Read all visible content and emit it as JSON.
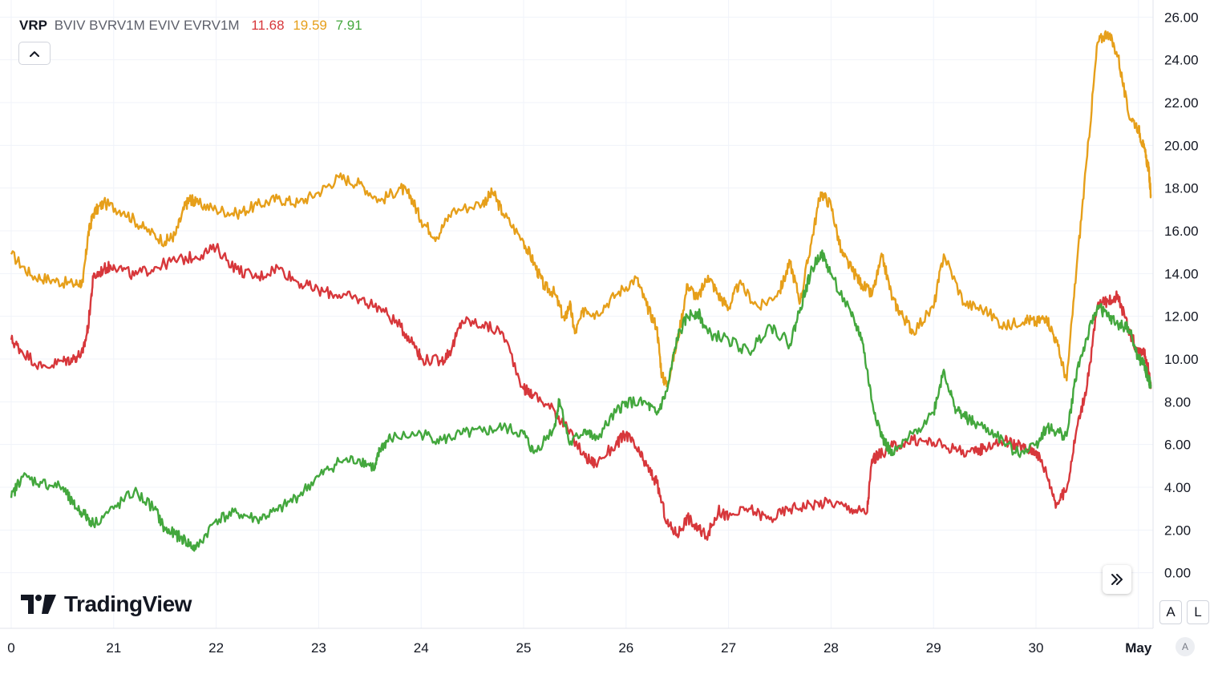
{
  "legend": {
    "symbol": "VRP",
    "studies": "BVIV BVRV1M EVIV EVRV1M",
    "values": [
      "11.68",
      "19.59",
      "7.91"
    ]
  },
  "logo": {
    "text": "TradingView"
  },
  "buttons": {
    "auto_scale": "A",
    "log_scale": "L",
    "timezone": "A"
  },
  "colors": {
    "red": "#d7373b",
    "orange": "#e69f1a",
    "green": "#43a73d",
    "grid": "#f0f3fa",
    "text": "#131722"
  },
  "icons": {
    "collapse": "chevron-up-icon",
    "scroll": "double-chevron-right-icon"
  },
  "chart_data": {
    "type": "line",
    "title": "",
    "xlabel": "",
    "ylabel": "",
    "x_tick_labels": [
      "0",
      "21",
      "22",
      "23",
      "24",
      "25",
      "26",
      "27",
      "28",
      "29",
      "30",
      "May"
    ],
    "x_tick_pos": [
      0,
      1,
      2,
      3,
      4,
      5,
      6,
      7,
      8,
      9,
      10,
      11
    ],
    "xlim": [
      0,
      11.17
    ],
    "ylim": [
      -2.6,
      26.8
    ],
    "y_ticks": [
      0,
      2,
      4,
      6,
      8,
      10,
      12,
      14,
      16,
      18,
      20,
      22,
      24,
      26
    ],
    "y_tick_labels": [
      "0.00",
      "2.00",
      "4.00",
      "6.00",
      "8.00",
      "10.00",
      "12.00",
      "14.00",
      "16.00",
      "18.00",
      "20.00",
      "22.00",
      "24.00",
      "26.00"
    ],
    "grid": true,
    "legend_position": "top-left",
    "series": [
      {
        "color": "#e69f1a",
        "x": [
          0,
          0.2,
          0.4,
          0.6,
          0.7,
          0.75,
          0.8,
          0.9,
          1.1,
          1.3,
          1.5,
          1.6,
          1.7,
          1.75,
          1.8,
          2.0,
          2.2,
          2.4,
          2.6,
          2.8,
          3.0,
          3.2,
          3.4,
          3.6,
          3.8,
          3.9,
          4.0,
          4.15,
          4.3,
          4.6,
          4.7,
          4.8,
          5.0,
          5.1,
          5.2,
          5.3,
          5.4,
          5.45,
          5.5,
          5.6,
          5.7,
          5.9,
          6.1,
          6.2,
          6.3,
          6.35,
          6.4,
          6.5,
          6.6,
          6.7,
          6.8,
          6.9,
          7.0,
          7.1,
          7.3,
          7.5,
          7.6,
          7.7,
          7.8,
          7.9,
          8.0,
          8.1,
          8.2,
          8.3,
          8.4,
          8.5,
          8.6,
          8.7,
          8.8,
          9.0,
          9.1,
          9.3,
          9.5,
          9.7,
          9.9,
          10.0,
          10.1,
          10.2,
          10.3,
          10.4,
          10.5,
          10.6,
          10.7,
          10.8,
          10.9,
          11.0,
          11.05,
          11.1,
          11.12
        ],
        "y": [
          14.9,
          13.9,
          13.7,
          13.5,
          13.6,
          15.8,
          16.8,
          17.3,
          16.9,
          16.1,
          15.5,
          15.8,
          17.2,
          17.5,
          17.3,
          17.0,
          16.8,
          17.2,
          17.5,
          17.3,
          17.8,
          18.5,
          18.2,
          17.4,
          18.0,
          17.6,
          16.5,
          15.7,
          16.9,
          17.3,
          17.8,
          16.8,
          15.5,
          14.5,
          13.4,
          13.1,
          11.8,
          12.6,
          11.2,
          12.4,
          12.1,
          13.0,
          13.8,
          12.5,
          11.5,
          9.2,
          8.8,
          10.8,
          13.5,
          12.8,
          13.9,
          13.0,
          12.4,
          13.5,
          12.4,
          13.2,
          14.5,
          12.7,
          15.3,
          17.8,
          17.2,
          15.0,
          14.2,
          13.5,
          13.0,
          14.8,
          12.8,
          12.0,
          11.3,
          12.4,
          14.9,
          12.6,
          12.3,
          11.5,
          11.9,
          11.7,
          12.0,
          10.8,
          9.0,
          14.5,
          19.5,
          24.8,
          25.3,
          24.2,
          21.5,
          20.8,
          19.9,
          18.9,
          17.7
        ]
      },
      {
        "color": "#d7373b",
        "x": [
          0,
          0.1,
          0.3,
          0.5,
          0.6,
          0.7,
          0.75,
          0.8,
          0.9,
          1.0,
          1.2,
          1.4,
          1.6,
          1.8,
          2.0,
          2.2,
          2.4,
          2.6,
          2.8,
          3.0,
          3.2,
          3.4,
          3.6,
          3.8,
          3.95,
          4.0,
          4.2,
          4.3,
          4.4,
          4.6,
          4.8,
          5.0,
          5.1,
          5.3,
          5.4,
          5.6,
          5.7,
          5.9,
          6.0,
          6.1,
          6.2,
          6.3,
          6.4,
          6.5,
          6.6,
          6.7,
          6.8,
          6.9,
          7.0,
          7.2,
          7.4,
          7.6,
          7.8,
          8.0,
          8.2,
          8.35,
          8.4,
          8.5,
          8.6,
          8.8,
          9.0,
          9.2,
          9.4,
          9.5,
          9.7,
          9.8,
          9.9,
          10.0,
          10.1,
          10.2,
          10.3,
          10.4,
          10.5,
          10.6,
          10.7,
          10.8,
          10.9,
          11.0,
          11.05,
          11.1,
          11.12
        ],
        "y": [
          10.9,
          10.4,
          9.6,
          9.9,
          10.0,
          10.3,
          11.5,
          13.8,
          14.2,
          14.4,
          13.9,
          14.3,
          14.6,
          14.8,
          15.2,
          14.2,
          13.8,
          14.3,
          13.6,
          13.2,
          13.0,
          12.8,
          12.4,
          11.5,
          10.6,
          10.0,
          9.9,
          10.5,
          11.8,
          11.6,
          11.2,
          8.6,
          8.3,
          7.6,
          6.9,
          5.4,
          5.1,
          6.0,
          6.5,
          5.8,
          5.0,
          4.2,
          2.3,
          1.8,
          2.6,
          2.0,
          1.8,
          2.9,
          2.6,
          3.0,
          2.5,
          3.0,
          3.2,
          3.3,
          3.0,
          2.8,
          5.3,
          5.6,
          5.9,
          6.2,
          6.1,
          5.8,
          5.6,
          5.9,
          6.2,
          6.0,
          5.8,
          5.7,
          4.7,
          3.2,
          3.9,
          6.8,
          8.8,
          12.5,
          12.7,
          13.0,
          11.4,
          10.3,
          10.5,
          9.4,
          8.6
        ]
      },
      {
        "color": "#43a73d",
        "x": [
          0,
          0.1,
          0.3,
          0.5,
          0.6,
          0.7,
          0.8,
          1.0,
          1.2,
          1.4,
          1.5,
          1.6,
          1.7,
          1.8,
          2.0,
          2.2,
          2.4,
          2.6,
          2.8,
          3.0,
          3.2,
          3.4,
          3.55,
          3.6,
          3.7,
          4.0,
          4.2,
          4.4,
          4.6,
          4.8,
          5.0,
          5.1,
          5.3,
          5.35,
          5.45,
          5.6,
          5.7,
          5.9,
          6.0,
          6.2,
          6.3,
          6.4,
          6.5,
          6.6,
          6.7,
          6.8,
          7.0,
          7.2,
          7.4,
          7.6,
          7.7,
          7.8,
          7.9,
          8.0,
          8.2,
          8.3,
          8.4,
          8.5,
          8.6,
          8.8,
          9.0,
          9.1,
          9.2,
          9.3,
          9.4,
          9.6,
          9.8,
          10.0,
          10.1,
          10.2,
          10.3,
          10.4,
          10.5,
          10.6,
          10.7,
          10.8,
          10.9,
          11.0,
          11.05,
          11.1,
          11.12
        ],
        "y": [
          3.5,
          4.5,
          4.2,
          4.0,
          3.2,
          2.8,
          2.3,
          3.0,
          3.8,
          3.0,
          2.0,
          1.8,
          1.5,
          1.1,
          2.5,
          2.8,
          2.5,
          2.9,
          3.6,
          4.5,
          5.2,
          5.3,
          4.9,
          5.8,
          6.3,
          6.5,
          6.2,
          6.5,
          6.6,
          6.8,
          6.5,
          5.6,
          6.8,
          8.1,
          6.0,
          6.7,
          6.2,
          7.5,
          8.0,
          7.9,
          7.4,
          8.5,
          11.0,
          12.0,
          12.2,
          11.2,
          10.9,
          10.3,
          11.6,
          10.7,
          12.4,
          14.0,
          15.0,
          14.0,
          12.0,
          11.0,
          8.0,
          6.3,
          5.5,
          6.5,
          7.5,
          9.5,
          7.8,
          7.3,
          7.0,
          6.5,
          5.6,
          6.0,
          6.8,
          6.6,
          6.4,
          9.5,
          11.0,
          12.5,
          12.0,
          11.6,
          11.5,
          10.0,
          9.8,
          9.0,
          8.8
        ]
      }
    ]
  }
}
